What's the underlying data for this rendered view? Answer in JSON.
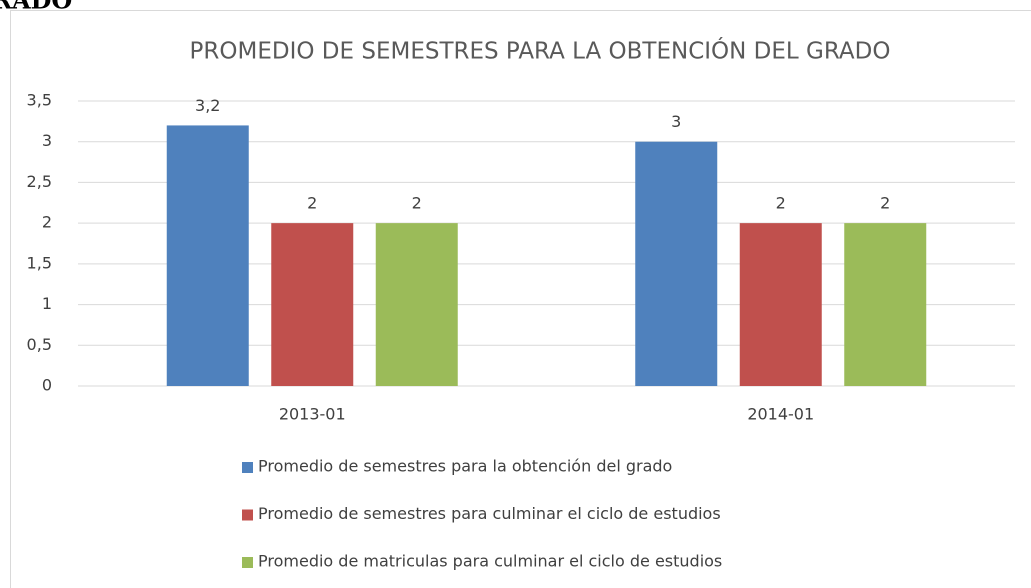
{
  "cropped_heading": "RADO",
  "chart_data": {
    "type": "bar",
    "title": "PROMEDIO DE SEMESTRES PARA LA OBTENCIÓN DEL GRADO",
    "categories": [
      "2013-01",
      "2014-01"
    ],
    "series": [
      {
        "name": "Promedio de semestres para la obtención del grado",
        "color": "#4f81bd",
        "values": [
          3.2,
          3
        ],
        "value_labels": [
          "3,2",
          "3"
        ]
      },
      {
        "name": "Promedio de semestres para culminar el ciclo de estudios",
        "color": "#c0504d",
        "values": [
          2,
          2
        ]
      },
      {
        "name": "Promedio de matriculas para culminar el ciclo de estudios",
        "color": "#9bbb59",
        "values": [
          2,
          2
        ]
      }
    ],
    "ylim": [
      0,
      3.5
    ],
    "yticks": [
      0,
      {
        "value": 0.5,
        "label": "0,5"
      },
      1,
      {
        "value": 1.5,
        "label": "1,5"
      },
      2,
      {
        "value": 2.5,
        "label": "2,5"
      },
      3,
      {
        "value": 3.5,
        "label": "3,5"
      }
    ],
    "grid": true,
    "legend": "bottom"
  }
}
